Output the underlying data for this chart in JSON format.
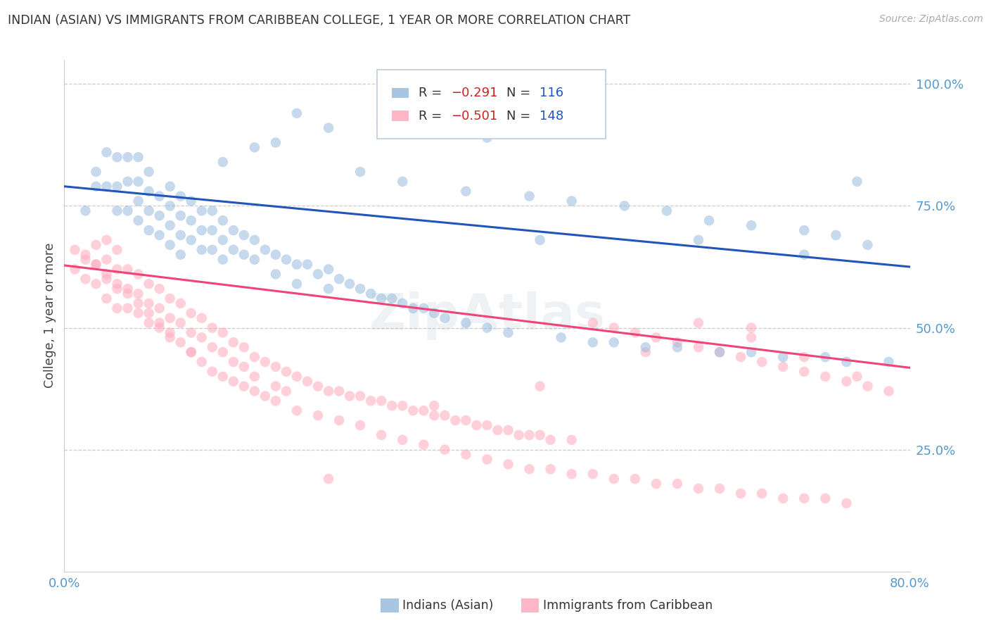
{
  "title": "INDIAN (ASIAN) VS IMMIGRANTS FROM CARIBBEAN COLLEGE, 1 YEAR OR MORE CORRELATION CHART",
  "source": "Source: ZipAtlas.com",
  "ylabel": "College, 1 year or more",
  "xlim": [
    0.0,
    0.8
  ],
  "ylim": [
    0.0,
    1.05
  ],
  "legend_label1": "Indians (Asian)",
  "legend_label2": "Immigrants from Caribbean",
  "color_blue": "#99BBDD",
  "color_pink": "#FFAABC",
  "line_blue": "#2255BB",
  "line_pink": "#EE4477",
  "tick_color": "#5599CC",
  "grid_color": "#CCCCCC",
  "blue_line": [
    0.0,
    0.8,
    0.79,
    0.625
  ],
  "pink_line": [
    0.0,
    0.8,
    0.628,
    0.418
  ],
  "blue_x": [
    0.02,
    0.03,
    0.03,
    0.04,
    0.04,
    0.05,
    0.05,
    0.05,
    0.06,
    0.06,
    0.06,
    0.07,
    0.07,
    0.07,
    0.07,
    0.08,
    0.08,
    0.08,
    0.08,
    0.09,
    0.09,
    0.09,
    0.1,
    0.1,
    0.1,
    0.1,
    0.11,
    0.11,
    0.11,
    0.11,
    0.12,
    0.12,
    0.12,
    0.13,
    0.13,
    0.13,
    0.14,
    0.14,
    0.14,
    0.15,
    0.15,
    0.15,
    0.16,
    0.16,
    0.17,
    0.17,
    0.18,
    0.18,
    0.19,
    0.2,
    0.2,
    0.21,
    0.22,
    0.22,
    0.23,
    0.24,
    0.25,
    0.25,
    0.26,
    0.27,
    0.28,
    0.29,
    0.3,
    0.31,
    0.32,
    0.33,
    0.34,
    0.35,
    0.36,
    0.38,
    0.4,
    0.42,
    0.45,
    0.47,
    0.5,
    0.52,
    0.55,
    0.58,
    0.6,
    0.62,
    0.65,
    0.68,
    0.7,
    0.72,
    0.74,
    0.75,
    0.78,
    0.4,
    0.3,
    0.35,
    0.2,
    0.15,
    0.18,
    0.22,
    0.25,
    0.28,
    0.32,
    0.38,
    0.44,
    0.48,
    0.53,
    0.57,
    0.61,
    0.65,
    0.7,
    0.73,
    0.76
  ],
  "blue_y": [
    0.74,
    0.82,
    0.79,
    0.86,
    0.79,
    0.85,
    0.79,
    0.74,
    0.85,
    0.8,
    0.74,
    0.85,
    0.8,
    0.76,
    0.72,
    0.82,
    0.78,
    0.74,
    0.7,
    0.77,
    0.73,
    0.69,
    0.79,
    0.75,
    0.71,
    0.67,
    0.77,
    0.73,
    0.69,
    0.65,
    0.76,
    0.72,
    0.68,
    0.74,
    0.7,
    0.66,
    0.74,
    0.7,
    0.66,
    0.72,
    0.68,
    0.64,
    0.7,
    0.66,
    0.69,
    0.65,
    0.68,
    0.64,
    0.66,
    0.65,
    0.61,
    0.64,
    0.63,
    0.59,
    0.63,
    0.61,
    0.62,
    0.58,
    0.6,
    0.59,
    0.58,
    0.57,
    0.56,
    0.56,
    0.55,
    0.54,
    0.54,
    0.53,
    0.52,
    0.51,
    0.5,
    0.49,
    0.68,
    0.48,
    0.47,
    0.47,
    0.46,
    0.46,
    0.68,
    0.45,
    0.45,
    0.44,
    0.65,
    0.44,
    0.43,
    0.8,
    0.43,
    0.89,
    0.92,
    0.9,
    0.88,
    0.84,
    0.87,
    0.94,
    0.91,
    0.82,
    0.8,
    0.78,
    0.77,
    0.76,
    0.75,
    0.74,
    0.72,
    0.71,
    0.7,
    0.69,
    0.67
  ],
  "pink_x": [
    0.01,
    0.01,
    0.02,
    0.02,
    0.03,
    0.03,
    0.03,
    0.04,
    0.04,
    0.04,
    0.04,
    0.05,
    0.05,
    0.05,
    0.05,
    0.06,
    0.06,
    0.06,
    0.07,
    0.07,
    0.07,
    0.08,
    0.08,
    0.08,
    0.09,
    0.09,
    0.09,
    0.1,
    0.1,
    0.1,
    0.11,
    0.11,
    0.12,
    0.12,
    0.12,
    0.13,
    0.13,
    0.14,
    0.14,
    0.15,
    0.15,
    0.16,
    0.16,
    0.17,
    0.17,
    0.18,
    0.18,
    0.19,
    0.2,
    0.2,
    0.21,
    0.21,
    0.22,
    0.23,
    0.24,
    0.25,
    0.26,
    0.27,
    0.28,
    0.29,
    0.3,
    0.31,
    0.32,
    0.33,
    0.34,
    0.35,
    0.36,
    0.37,
    0.38,
    0.39,
    0.4,
    0.41,
    0.42,
    0.43,
    0.44,
    0.45,
    0.46,
    0.48,
    0.5,
    0.52,
    0.54,
    0.56,
    0.58,
    0.6,
    0.62,
    0.64,
    0.66,
    0.68,
    0.7,
    0.72,
    0.74,
    0.76,
    0.78,
    0.6,
    0.65,
    0.7,
    0.75,
    0.02,
    0.03,
    0.04,
    0.05,
    0.06,
    0.07,
    0.08,
    0.09,
    0.1,
    0.11,
    0.12,
    0.13,
    0.14,
    0.15,
    0.16,
    0.17,
    0.18,
    0.19,
    0.2,
    0.22,
    0.24,
    0.26,
    0.28,
    0.3,
    0.32,
    0.34,
    0.36,
    0.38,
    0.4,
    0.42,
    0.44,
    0.46,
    0.48,
    0.5,
    0.52,
    0.54,
    0.56,
    0.58,
    0.6,
    0.62,
    0.64,
    0.66,
    0.68,
    0.7,
    0.72,
    0.74,
    0.65,
    0.55,
    0.45,
    0.35,
    0.25
  ],
  "pink_y": [
    0.66,
    0.62,
    0.64,
    0.6,
    0.67,
    0.63,
    0.59,
    0.68,
    0.64,
    0.6,
    0.56,
    0.66,
    0.62,
    0.58,
    0.54,
    0.62,
    0.58,
    0.54,
    0.61,
    0.57,
    0.53,
    0.59,
    0.55,
    0.51,
    0.58,
    0.54,
    0.5,
    0.56,
    0.52,
    0.48,
    0.55,
    0.51,
    0.53,
    0.49,
    0.45,
    0.52,
    0.48,
    0.5,
    0.46,
    0.49,
    0.45,
    0.47,
    0.43,
    0.46,
    0.42,
    0.44,
    0.4,
    0.43,
    0.42,
    0.38,
    0.41,
    0.37,
    0.4,
    0.39,
    0.38,
    0.37,
    0.37,
    0.36,
    0.36,
    0.35,
    0.35,
    0.34,
    0.34,
    0.33,
    0.33,
    0.32,
    0.32,
    0.31,
    0.31,
    0.3,
    0.3,
    0.29,
    0.29,
    0.28,
    0.28,
    0.28,
    0.27,
    0.27,
    0.51,
    0.5,
    0.49,
    0.48,
    0.47,
    0.46,
    0.45,
    0.44,
    0.43,
    0.42,
    0.41,
    0.4,
    0.39,
    0.38,
    0.37,
    0.51,
    0.48,
    0.44,
    0.4,
    0.65,
    0.63,
    0.61,
    0.59,
    0.57,
    0.55,
    0.53,
    0.51,
    0.49,
    0.47,
    0.45,
    0.43,
    0.41,
    0.4,
    0.39,
    0.38,
    0.37,
    0.36,
    0.35,
    0.33,
    0.32,
    0.31,
    0.3,
    0.28,
    0.27,
    0.26,
    0.25,
    0.24,
    0.23,
    0.22,
    0.21,
    0.21,
    0.2,
    0.2,
    0.19,
    0.19,
    0.18,
    0.18,
    0.17,
    0.17,
    0.16,
    0.16,
    0.15,
    0.15,
    0.15,
    0.14,
    0.5,
    0.45,
    0.38,
    0.34,
    0.19
  ]
}
